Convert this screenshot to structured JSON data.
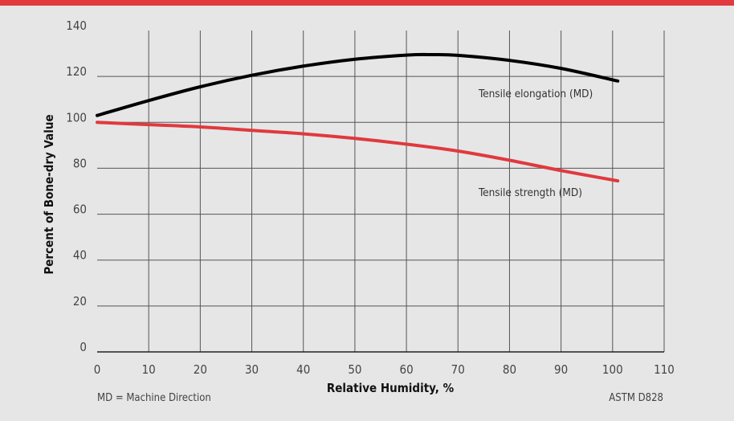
{
  "chart_data": {
    "type": "line",
    "xlabel": "Relative Humidity, %",
    "ylabel": "Percent of Bone-dry Value",
    "xlim": [
      0,
      110
    ],
    "ylim": [
      0,
      140
    ],
    "x_ticks": [
      0,
      10,
      20,
      30,
      40,
      50,
      60,
      70,
      80,
      90,
      100,
      110
    ],
    "y_ticks": [
      0,
      20,
      40,
      60,
      80,
      100,
      120,
      140
    ],
    "grid": true,
    "series": [
      {
        "name": "Tensile elongation (MD)",
        "color": "#000000",
        "x": [
          0,
          10,
          20,
          30,
          40,
          50,
          60,
          65,
          70,
          80,
          90,
          101
        ],
        "y": [
          103,
          109.5,
          115.5,
          120.5,
          124.5,
          127.5,
          129.3,
          129.5,
          129.2,
          127,
          123.5,
          118
        ]
      },
      {
        "name": "Tensile strength (MD)",
        "color": "#e0393e",
        "x": [
          0,
          10,
          20,
          30,
          40,
          50,
          60,
          70,
          80,
          90,
          101
        ],
        "y": [
          100,
          99,
          98,
          96.5,
          95,
          93,
          90.5,
          87.5,
          83.5,
          79,
          74.5
        ]
      }
    ]
  },
  "footer": {
    "left_note": "MD = Machine Direction",
    "right_note": "ASTM D828"
  }
}
